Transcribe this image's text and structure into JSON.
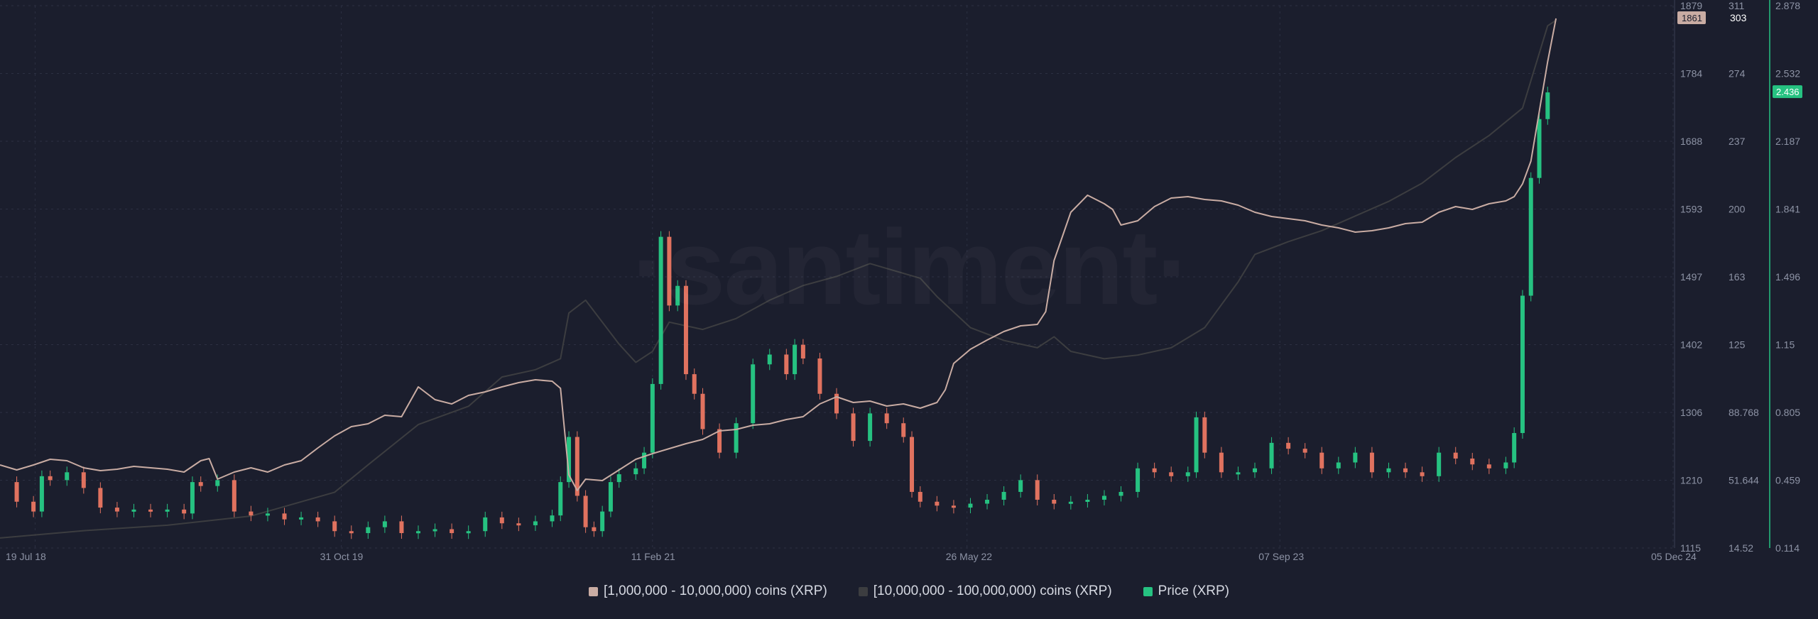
{
  "watermark": "·santiment·",
  "colors": {
    "background": "#1b1e2d",
    "grid": "#2c3042",
    "series_a": "#c9aca3",
    "series_b": "#3c3d40",
    "price_up": "#26c281",
    "price_down": "#e0725f",
    "price_axis": "#26c281",
    "axis_text": "#8d93a5"
  },
  "chart_data": {
    "type": "line",
    "x_ticks": [
      "19 Jul 18",
      "31 Oct 19",
      "11 Feb 21",
      "26 May 22",
      "07 Sep 23",
      "05 Dec 24"
    ],
    "x_tick_positions": [
      0.004,
      0.187,
      0.373,
      0.561,
      0.748,
      0.983
    ],
    "grid": true,
    "legend_placement": "bottom-center",
    "axes": {
      "left_axis_ticks": [
        "1879",
        "1784",
        "1688",
        "1593",
        "1497",
        "1402",
        "1306",
        "1210",
        "1115"
      ],
      "left_axis_range": [
        1115,
        1879
      ],
      "middle_axis_ticks": [
        "311",
        "274",
        "237",
        "200",
        "163",
        "125",
        "88.768",
        "51.644",
        "14.52"
      ],
      "middle_axis_range": [
        14.52,
        311
      ],
      "right_axis_ticks": [
        "2.878",
        "2.532",
        "2.187",
        "1.841",
        "1.496",
        "1.15",
        "0.805",
        "0.459",
        "0.114"
      ],
      "right_axis_range": [
        0.114,
        2.878
      ]
    },
    "last_values": {
      "series_a": "1861",
      "series_b": "303",
      "price": "2.436"
    },
    "series": [
      {
        "name": "[1,000,000 - 10,000,000) coins (XRP)",
        "axis": "left",
        "style": "line",
        "points": [
          [
            0.0,
            1232
          ],
          [
            0.01,
            1225
          ],
          [
            0.02,
            1232
          ],
          [
            0.03,
            1240
          ],
          [
            0.04,
            1238
          ],
          [
            0.05,
            1228
          ],
          [
            0.06,
            1224
          ],
          [
            0.07,
            1226
          ],
          [
            0.08,
            1230
          ],
          [
            0.09,
            1228
          ],
          [
            0.1,
            1226
          ],
          [
            0.11,
            1222
          ],
          [
            0.12,
            1238
          ],
          [
            0.125,
            1241
          ],
          [
            0.13,
            1212
          ],
          [
            0.14,
            1222
          ],
          [
            0.15,
            1228
          ],
          [
            0.16,
            1222
          ],
          [
            0.17,
            1232
          ],
          [
            0.18,
            1238
          ],
          [
            0.19,
            1256
          ],
          [
            0.2,
            1273
          ],
          [
            0.21,
            1286
          ],
          [
            0.22,
            1290
          ],
          [
            0.23,
            1302
          ],
          [
            0.24,
            1300
          ],
          [
            0.25,
            1342
          ],
          [
            0.26,
            1324
          ],
          [
            0.27,
            1318
          ],
          [
            0.28,
            1330
          ],
          [
            0.29,
            1335
          ],
          [
            0.3,
            1342
          ],
          [
            0.31,
            1348
          ],
          [
            0.32,
            1352
          ],
          [
            0.33,
            1350
          ],
          [
            0.335,
            1340
          ],
          [
            0.34,
            1218
          ],
          [
            0.345,
            1196
          ],
          [
            0.35,
            1212
          ],
          [
            0.36,
            1210
          ],
          [
            0.37,
            1225
          ],
          [
            0.38,
            1240
          ],
          [
            0.39,
            1248
          ],
          [
            0.4,
            1255
          ],
          [
            0.41,
            1262
          ],
          [
            0.42,
            1268
          ],
          [
            0.43,
            1280
          ],
          [
            0.44,
            1282
          ],
          [
            0.45,
            1288
          ],
          [
            0.46,
            1290
          ],
          [
            0.47,
            1296
          ],
          [
            0.48,
            1300
          ],
          [
            0.49,
            1318
          ],
          [
            0.5,
            1328
          ],
          [
            0.51,
            1320
          ],
          [
            0.52,
            1322
          ],
          [
            0.53,
            1315
          ],
          [
            0.54,
            1318
          ],
          [
            0.55,
            1312
          ],
          [
            0.56,
            1320
          ],
          [
            0.565,
            1338
          ],
          [
            0.57,
            1375
          ],
          [
            0.58,
            1395
          ],
          [
            0.59,
            1408
          ],
          [
            0.6,
            1420
          ],
          [
            0.61,
            1428
          ],
          [
            0.62,
            1430
          ],
          [
            0.625,
            1448
          ],
          [
            0.63,
            1520
          ],
          [
            0.64,
            1588
          ],
          [
            0.65,
            1612
          ],
          [
            0.66,
            1600
          ],
          [
            0.665,
            1592
          ],
          [
            0.67,
            1570
          ],
          [
            0.68,
            1576
          ],
          [
            0.69,
            1596
          ],
          [
            0.7,
            1608
          ],
          [
            0.71,
            1610
          ],
          [
            0.72,
            1606
          ],
          [
            0.73,
            1604
          ],
          [
            0.74,
            1598
          ],
          [
            0.75,
            1588
          ],
          [
            0.76,
            1582
          ],
          [
            0.77,
            1579
          ],
          [
            0.78,
            1576
          ],
          [
            0.79,
            1570
          ],
          [
            0.8,
            1566
          ],
          [
            0.81,
            1560
          ],
          [
            0.82,
            1562
          ],
          [
            0.83,
            1566
          ],
          [
            0.84,
            1572
          ],
          [
            0.85,
            1574
          ],
          [
            0.86,
            1588
          ],
          [
            0.87,
            1596
          ],
          [
            0.88,
            1592
          ],
          [
            0.89,
            1600
          ],
          [
            0.9,
            1604
          ],
          [
            0.905,
            1610
          ],
          [
            0.91,
            1628
          ],
          [
            0.915,
            1660
          ],
          [
            0.92,
            1730
          ],
          [
            0.925,
            1800
          ],
          [
            0.93,
            1861
          ]
        ]
      },
      {
        "name": "[10,000,000 - 100,000,000) coins (XRP)",
        "axis": "middle",
        "style": "line",
        "points": [
          [
            0.0,
            20
          ],
          [
            0.05,
            24
          ],
          [
            0.1,
            27
          ],
          [
            0.15,
            32
          ],
          [
            0.2,
            45
          ],
          [
            0.22,
            60
          ],
          [
            0.25,
            82
          ],
          [
            0.28,
            92
          ],
          [
            0.3,
            108
          ],
          [
            0.32,
            112
          ],
          [
            0.335,
            118
          ],
          [
            0.34,
            143
          ],
          [
            0.35,
            150
          ],
          [
            0.36,
            138
          ],
          [
            0.37,
            126
          ],
          [
            0.38,
            116
          ],
          [
            0.39,
            122
          ],
          [
            0.4,
            138
          ],
          [
            0.42,
            134
          ],
          [
            0.44,
            140
          ],
          [
            0.46,
            150
          ],
          [
            0.48,
            158
          ],
          [
            0.5,
            163
          ],
          [
            0.52,
            170
          ],
          [
            0.55,
            162
          ],
          [
            0.56,
            152
          ],
          [
            0.58,
            135
          ],
          [
            0.6,
            128
          ],
          [
            0.62,
            124
          ],
          [
            0.63,
            130
          ],
          [
            0.64,
            122
          ],
          [
            0.66,
            118
          ],
          [
            0.68,
            120
          ],
          [
            0.7,
            124
          ],
          [
            0.72,
            135
          ],
          [
            0.74,
            160
          ],
          [
            0.75,
            175
          ],
          [
            0.77,
            182
          ],
          [
            0.79,
            188
          ],
          [
            0.81,
            196
          ],
          [
            0.83,
            204
          ],
          [
            0.85,
            214
          ],
          [
            0.87,
            228
          ],
          [
            0.89,
            240
          ],
          [
            0.91,
            255
          ],
          [
            0.92,
            285
          ],
          [
            0.925,
            300
          ],
          [
            0.93,
            303
          ]
        ]
      },
      {
        "name": "Price (XRP)",
        "axis": "right",
        "style": "candlestick",
        "points": [
          [
            0.0,
            0.45
          ],
          [
            0.01,
            0.35
          ],
          [
            0.02,
            0.3
          ],
          [
            0.025,
            0.48
          ],
          [
            0.03,
            0.46
          ],
          [
            0.04,
            0.5
          ],
          [
            0.05,
            0.42
          ],
          [
            0.06,
            0.32
          ],
          [
            0.07,
            0.3
          ],
          [
            0.08,
            0.31
          ],
          [
            0.09,
            0.3
          ],
          [
            0.1,
            0.31
          ],
          [
            0.11,
            0.29
          ],
          [
            0.115,
            0.45
          ],
          [
            0.12,
            0.43
          ],
          [
            0.13,
            0.46
          ],
          [
            0.14,
            0.3
          ],
          [
            0.15,
            0.28
          ],
          [
            0.16,
            0.29
          ],
          [
            0.17,
            0.26
          ],
          [
            0.18,
            0.27
          ],
          [
            0.19,
            0.25
          ],
          [
            0.2,
            0.2
          ],
          [
            0.21,
            0.19
          ],
          [
            0.22,
            0.22
          ],
          [
            0.23,
            0.25
          ],
          [
            0.24,
            0.19
          ],
          [
            0.25,
            0.2
          ],
          [
            0.26,
            0.21
          ],
          [
            0.27,
            0.19
          ],
          [
            0.28,
            0.2
          ],
          [
            0.29,
            0.27
          ],
          [
            0.3,
            0.24
          ],
          [
            0.31,
            0.23
          ],
          [
            0.32,
            0.25
          ],
          [
            0.33,
            0.28
          ],
          [
            0.335,
            0.45
          ],
          [
            0.34,
            0.68
          ],
          [
            0.345,
            0.38
          ],
          [
            0.35,
            0.22
          ],
          [
            0.355,
            0.2
          ],
          [
            0.36,
            0.3
          ],
          [
            0.365,
            0.45
          ],
          [
            0.37,
            0.49
          ],
          [
            0.38,
            0.52
          ],
          [
            0.385,
            0.6
          ],
          [
            0.39,
            0.95
          ],
          [
            0.395,
            1.7
          ],
          [
            0.4,
            1.35
          ],
          [
            0.405,
            1.45
          ],
          [
            0.41,
            1.0
          ],
          [
            0.415,
            0.9
          ],
          [
            0.42,
            0.72
          ],
          [
            0.43,
            0.6
          ],
          [
            0.44,
            0.75
          ],
          [
            0.45,
            1.05
          ],
          [
            0.46,
            1.1
          ],
          [
            0.47,
            1.0
          ],
          [
            0.475,
            1.15
          ],
          [
            0.48,
            1.08
          ],
          [
            0.49,
            0.9
          ],
          [
            0.5,
            0.8
          ],
          [
            0.51,
            0.66
          ],
          [
            0.52,
            0.8
          ],
          [
            0.53,
            0.75
          ],
          [
            0.54,
            0.68
          ],
          [
            0.545,
            0.4
          ],
          [
            0.55,
            0.35
          ],
          [
            0.56,
            0.33
          ],
          [
            0.57,
            0.32
          ],
          [
            0.58,
            0.34
          ],
          [
            0.59,
            0.36
          ],
          [
            0.6,
            0.4
          ],
          [
            0.61,
            0.46
          ],
          [
            0.62,
            0.36
          ],
          [
            0.63,
            0.34
          ],
          [
            0.64,
            0.35
          ],
          [
            0.65,
            0.36
          ],
          [
            0.66,
            0.38
          ],
          [
            0.67,
            0.4
          ],
          [
            0.68,
            0.52
          ],
          [
            0.69,
            0.5
          ],
          [
            0.7,
            0.48
          ],
          [
            0.71,
            0.5
          ],
          [
            0.715,
            0.78
          ],
          [
            0.72,
            0.6
          ],
          [
            0.73,
            0.5
          ],
          [
            0.74,
            0.5
          ],
          [
            0.75,
            0.52
          ],
          [
            0.76,
            0.65
          ],
          [
            0.77,
            0.62
          ],
          [
            0.78,
            0.6
          ],
          [
            0.79,
            0.52
          ],
          [
            0.8,
            0.55
          ],
          [
            0.81,
            0.6
          ],
          [
            0.82,
            0.5
          ],
          [
            0.83,
            0.52
          ],
          [
            0.84,
            0.5
          ],
          [
            0.85,
            0.48
          ],
          [
            0.86,
            0.6
          ],
          [
            0.87,
            0.57
          ],
          [
            0.88,
            0.54
          ],
          [
            0.89,
            0.52
          ],
          [
            0.9,
            0.55
          ],
          [
            0.905,
            0.7
          ],
          [
            0.91,
            1.4
          ],
          [
            0.915,
            2.0
          ],
          [
            0.92,
            2.3
          ],
          [
            0.925,
            2.436
          ]
        ]
      }
    ]
  }
}
